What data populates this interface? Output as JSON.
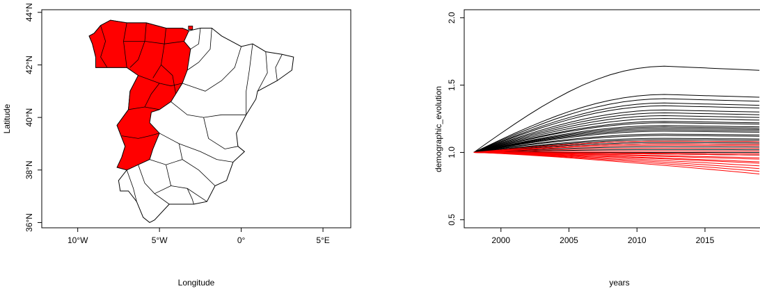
{
  "chart_data": [
    {
      "type": "map",
      "xlabel": "Longitude",
      "ylabel": "Latitude",
      "x_ticks": [
        "10°W",
        "5°W",
        "0°",
        "5°E"
      ],
      "x_tick_values": [
        -10,
        -5,
        0,
        5
      ],
      "y_ticks": [
        "36°N",
        "38°N",
        "40°N",
        "42°N",
        "44°N"
      ],
      "y_tick_values": [
        36,
        38,
        40,
        42,
        44
      ],
      "xlim": [
        -12.2,
        6.7
      ],
      "ylim": [
        35.8,
        44.1
      ],
      "highlight_color": "#ff0000",
      "base_color": "#ffffff",
      "outline_color": "#000000",
      "highlighted_region": [
        [
          -9.3,
          43.1
        ],
        [
          -9.0,
          43.2
        ],
        [
          -8.6,
          43.5
        ],
        [
          -8.0,
          43.7
        ],
        [
          -7.0,
          43.6
        ],
        [
          -5.8,
          43.6
        ],
        [
          -4.6,
          43.4
        ],
        [
          -3.6,
          43.4
        ],
        [
          -3.2,
          43.3
        ],
        [
          -3.5,
          42.9
        ],
        [
          -3.1,
          42.6
        ],
        [
          -3.3,
          41.8
        ],
        [
          -3.6,
          41.3
        ],
        [
          -4.0,
          40.9
        ],
        [
          -4.3,
          40.6
        ],
        [
          -5.0,
          40.3
        ],
        [
          -5.5,
          40.2
        ],
        [
          -5.6,
          39.8
        ],
        [
          -5.0,
          39.4
        ],
        [
          -5.4,
          38.8
        ],
        [
          -5.6,
          38.4
        ],
        [
          -6.3,
          38.2
        ],
        [
          -7.0,
          38.0
        ],
        [
          -7.6,
          38.1
        ],
        [
          -7.3,
          38.5
        ],
        [
          -7.1,
          38.9
        ],
        [
          -7.6,
          39.7
        ],
        [
          -6.9,
          40.3
        ],
        [
          -6.8,
          41.0
        ],
        [
          -6.3,
          41.6
        ],
        [
          -7.0,
          41.9
        ],
        [
          -8.2,
          41.9
        ],
        [
          -8.9,
          41.9
        ],
        [
          -8.9,
          42.3
        ],
        [
          -9.1,
          42.8
        ]
      ],
      "country_outline": [
        [
          -9.3,
          43.1
        ],
        [
          -9.0,
          43.2
        ],
        [
          -8.6,
          43.5
        ],
        [
          -8.0,
          43.7
        ],
        [
          -7.0,
          43.6
        ],
        [
          -5.8,
          43.6
        ],
        [
          -4.6,
          43.4
        ],
        [
          -3.6,
          43.4
        ],
        [
          -3.2,
          43.3
        ],
        [
          -2.5,
          43.4
        ],
        [
          -1.8,
          43.4
        ],
        [
          -1.2,
          43.1
        ],
        [
          0.0,
          42.7
        ],
        [
          0.7,
          42.8
        ],
        [
          1.5,
          42.5
        ],
        [
          2.5,
          42.4
        ],
        [
          3.2,
          42.3
        ],
        [
          3.1,
          41.8
        ],
        [
          2.2,
          41.4
        ],
        [
          1.0,
          41.0
        ],
        [
          0.9,
          40.7
        ],
        [
          0.3,
          40.1
        ],
        [
          -0.3,
          39.4
        ],
        [
          -0.2,
          38.9
        ],
        [
          0.2,
          38.7
        ],
        [
          -0.5,
          38.3
        ],
        [
          -0.9,
          37.6
        ],
        [
          -1.6,
          37.4
        ],
        [
          -2.1,
          36.8
        ],
        [
          -2.9,
          36.7
        ],
        [
          -4.4,
          36.7
        ],
        [
          -5.3,
          36.1
        ],
        [
          -5.6,
          36.0
        ],
        [
          -6.0,
          36.2
        ],
        [
          -6.4,
          36.8
        ],
        [
          -6.9,
          37.2
        ],
        [
          -7.4,
          37.2
        ],
        [
          -7.5,
          37.6
        ],
        [
          -7.0,
          38.0
        ],
        [
          -7.3,
          38.5
        ],
        [
          -7.1,
          38.9
        ],
        [
          -7.6,
          39.7
        ],
        [
          -6.9,
          40.3
        ],
        [
          -6.8,
          41.0
        ],
        [
          -6.3,
          41.6
        ],
        [
          -7.0,
          41.9
        ],
        [
          -8.2,
          41.9
        ],
        [
          -8.9,
          41.9
        ],
        [
          -8.9,
          42.3
        ],
        [
          -9.1,
          42.8
        ]
      ]
    },
    {
      "type": "line",
      "xlabel": "years",
      "ylabel": "demographic_evolution",
      "x_ticks": [
        "2000",
        "2005",
        "2010",
        "2015"
      ],
      "x_tick_values": [
        2000,
        2005,
        2010,
        2015
      ],
      "y_ticks": [
        "0.5",
        "1.0",
        "1.5",
        "2.0"
      ],
      "y_tick_values": [
        0.5,
        1.0,
        1.5,
        2.0
      ],
      "xlim": [
        1997.3,
        2019.3
      ],
      "ylim": [
        0.44,
        2.06
      ],
      "x_start": 1998,
      "x_end": 2019,
      "black_color": "#000000",
      "red_color": "#ff0000",
      "black_final_values": [
        1.61,
        1.41,
        1.38,
        1.35,
        1.33,
        1.3,
        1.28,
        1.26,
        1.24,
        1.22,
        1.21,
        1.19,
        1.18,
        1.17,
        1.16,
        1.15,
        1.13,
        1.12,
        1.1,
        1.09,
        1.08,
        1.07,
        1.06,
        1.04,
        1.02,
        1.0,
        0.98
      ],
      "red_final_values": [
        1.08,
        1.06,
        1.05,
        1.03,
        1.01,
        0.99,
        0.98,
        0.96,
        0.95,
        0.93,
        0.92,
        0.9,
        0.88,
        0.86,
        0.84
      ]
    }
  ]
}
